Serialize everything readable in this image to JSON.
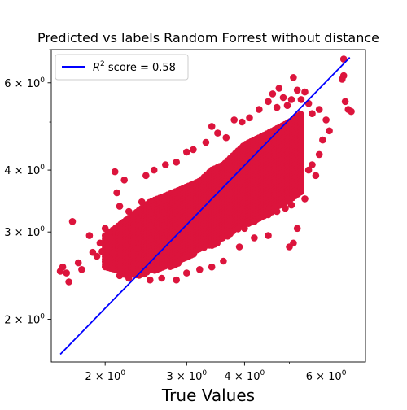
{
  "chart_data": {
    "type": "scatter",
    "title": "Predicted vs labels Random Forrest without distance",
    "xlabel": "True Values",
    "ylabel": "",
    "xscale": "log",
    "yscale": "log",
    "xlim": [
      1.53,
      7.3
    ],
    "ylim": [
      1.64,
      7.0
    ],
    "x_ticks": [
      {
        "value": 2,
        "label": "2 × 10^0"
      },
      {
        "value": 3,
        "label": "3 × 10^0"
      },
      {
        "value": 4,
        "label": "4 × 10^0"
      },
      {
        "value": 6,
        "label": "6 × 10^0"
      }
    ],
    "y_ticks": [
      {
        "value": 2,
        "label": "2 × 10^0"
      },
      {
        "value": 3,
        "label": "3 × 10^0"
      },
      {
        "value": 4,
        "label": "4 × 10^0"
      },
      {
        "value": 6,
        "label": "6 × 10^0"
      }
    ],
    "legend": {
      "placement": "upper-left",
      "entries": [
        {
          "label": "R^2 score = 0.58",
          "color": "#0000ff",
          "style": "line"
        }
      ]
    },
    "reference_line": {
      "x": [
        1.6,
        6.75
      ],
      "y": [
        1.7,
        6.75
      ],
      "color": "#0000ff"
    },
    "scatter_color": "#dc143c",
    "cloud": {
      "x": [
        2.0,
        2.1,
        2.2,
        2.3,
        2.4,
        2.5,
        2.6,
        2.7,
        2.8,
        2.9,
        3.0,
        3.1,
        3.2,
        3.3,
        3.4,
        3.5,
        3.6,
        3.7,
        3.8,
        3.9,
        4.0,
        4.2,
        4.4,
        4.6,
        4.8,
        5.0,
        5.3
      ],
      "y_low": [
        2.55,
        2.5,
        2.45,
        2.45,
        2.45,
        2.5,
        2.5,
        2.55,
        2.55,
        2.6,
        2.65,
        2.7,
        2.75,
        2.8,
        2.8,
        2.85,
        2.9,
        2.95,
        3.0,
        3.05,
        3.1,
        3.15,
        3.2,
        3.3,
        3.4,
        3.45,
        3.6
      ],
      "y_high": [
        2.95,
        3.05,
        3.15,
        3.25,
        3.35,
        3.45,
        3.5,
        3.55,
        3.6,
        3.65,
        3.7,
        3.75,
        3.8,
        3.9,
        4.0,
        4.05,
        4.1,
        4.2,
        4.3,
        4.4,
        4.5,
        4.6,
        4.7,
        4.8,
        4.9,
        5.0,
        5.2
      ]
    },
    "points": [
      {
        "x": 1.6,
        "y": 2.5
      },
      {
        "x": 1.62,
        "y": 2.55
      },
      {
        "x": 1.65,
        "y": 2.48
      },
      {
        "x": 1.67,
        "y": 2.38
      },
      {
        "x": 1.7,
        "y": 3.15
      },
      {
        "x": 1.75,
        "y": 2.6
      },
      {
        "x": 1.78,
        "y": 2.52
      },
      {
        "x": 1.85,
        "y": 2.95
      },
      {
        "x": 1.88,
        "y": 2.73
      },
      {
        "x": 1.92,
        "y": 2.68
      },
      {
        "x": 1.95,
        "y": 2.85
      },
      {
        "x": 1.97,
        "y": 2.74
      },
      {
        "x": 2.0,
        "y": 3.05
      },
      {
        "x": 2.05,
        "y": 2.92
      },
      {
        "x": 2.08,
        "y": 2.72
      },
      {
        "x": 2.1,
        "y": 3.97
      },
      {
        "x": 2.12,
        "y": 3.6
      },
      {
        "x": 2.15,
        "y": 3.38
      },
      {
        "x": 2.2,
        "y": 3.82
      },
      {
        "x": 2.25,
        "y": 3.3
      },
      {
        "x": 2.35,
        "y": 2.78
      },
      {
        "x": 2.4,
        "y": 3.45
      },
      {
        "x": 2.45,
        "y": 3.9
      },
      {
        "x": 2.55,
        "y": 4.0
      },
      {
        "x": 2.7,
        "y": 4.1
      },
      {
        "x": 2.85,
        "y": 4.15
      },
      {
        "x": 3.0,
        "y": 4.35
      },
      {
        "x": 3.1,
        "y": 4.4
      },
      {
        "x": 3.3,
        "y": 4.55
      },
      {
        "x": 3.4,
        "y": 4.9
      },
      {
        "x": 3.5,
        "y": 4.75
      },
      {
        "x": 3.65,
        "y": 4.65
      },
      {
        "x": 3.8,
        "y": 5.05
      },
      {
        "x": 3.95,
        "y": 5.0
      },
      {
        "x": 4.1,
        "y": 5.1
      },
      {
        "x": 4.3,
        "y": 5.3
      },
      {
        "x": 4.5,
        "y": 5.5
      },
      {
        "x": 4.6,
        "y": 5.7
      },
      {
        "x": 4.7,
        "y": 5.35
      },
      {
        "x": 4.75,
        "y": 5.85
      },
      {
        "x": 4.85,
        "y": 5.6
      },
      {
        "x": 4.95,
        "y": 5.4
      },
      {
        "x": 5.05,
        "y": 5.55
      },
      {
        "x": 5.1,
        "y": 6.15
      },
      {
        "x": 5.2,
        "y": 5.8
      },
      {
        "x": 5.3,
        "y": 5.55
      },
      {
        "x": 5.4,
        "y": 5.75
      },
      {
        "x": 5.5,
        "y": 5.45
      },
      {
        "x": 5.6,
        "y": 5.2
      },
      {
        "x": 5.8,
        "y": 5.3
      },
      {
        "x": 6.0,
        "y": 5.05
      },
      {
        "x": 6.5,
        "y": 6.1
      },
      {
        "x": 6.6,
        "y": 5.5
      },
      {
        "x": 6.7,
        "y": 5.3
      },
      {
        "x": 6.8,
        "y": 5.25
      },
      {
        "x": 6.55,
        "y": 6.7
      },
      {
        "x": 6.55,
        "y": 6.2
      },
      {
        "x": 4.0,
        "y": 3.05
      },
      {
        "x": 4.2,
        "y": 3.15
      },
      {
        "x": 4.5,
        "y": 3.25
      },
      {
        "x": 4.7,
        "y": 3.3
      },
      {
        "x": 4.9,
        "y": 3.35
      },
      {
        "x": 5.05,
        "y": 3.4
      },
      {
        "x": 5.2,
        "y": 3.6
      },
      {
        "x": 5.4,
        "y": 3.5
      },
      {
        "x": 5.2,
        "y": 3.05
      },
      {
        "x": 5.1,
        "y": 2.85
      },
      {
        "x": 5.0,
        "y": 2.8
      },
      {
        "x": 4.5,
        "y": 2.95
      },
      {
        "x": 4.2,
        "y": 2.92
      },
      {
        "x": 3.9,
        "y": 2.8
      },
      {
        "x": 3.6,
        "y": 2.62
      },
      {
        "x": 3.4,
        "y": 2.55
      },
      {
        "x": 3.2,
        "y": 2.52
      },
      {
        "x": 3.0,
        "y": 2.48
      },
      {
        "x": 2.85,
        "y": 2.4
      },
      {
        "x": 2.65,
        "y": 2.42
      },
      {
        "x": 2.5,
        "y": 2.4
      },
      {
        "x": 2.25,
        "y": 2.42
      },
      {
        "x": 2.15,
        "y": 2.45
      },
      {
        "x": 5.8,
        "y": 4.3
      },
      {
        "x": 5.6,
        "y": 4.1
      },
      {
        "x": 5.9,
        "y": 4.6
      },
      {
        "x": 5.5,
        "y": 4.0
      },
      {
        "x": 6.1,
        "y": 4.8
      },
      {
        "x": 5.7,
        "y": 3.9
      }
    ]
  }
}
